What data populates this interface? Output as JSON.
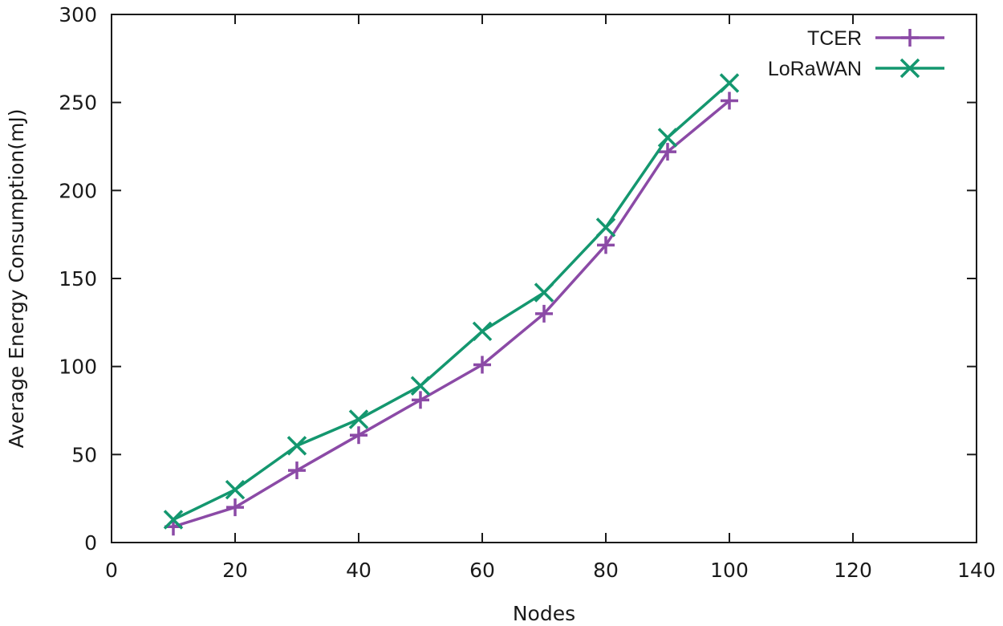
{
  "chart_data": {
    "type": "line",
    "xlabel": "Nodes",
    "ylabel": "Average Energy Consumption(mJ)",
    "xlim": [
      0,
      140
    ],
    "ylim": [
      0,
      300
    ],
    "xticks": [
      0,
      20,
      40,
      60,
      80,
      100,
      120,
      140
    ],
    "yticks": [
      0,
      50,
      100,
      150,
      200,
      250,
      300
    ],
    "grid": false,
    "legend_position": "top-right",
    "x": [
      10,
      20,
      30,
      40,
      50,
      60,
      70,
      80,
      90,
      100
    ],
    "series": [
      {
        "name": "TCER",
        "color": "#8b4aa6",
        "marker": "plus",
        "values": [
          9,
          20,
          41,
          61,
          81,
          101,
          130,
          169,
          222,
          251
        ]
      },
      {
        "name": "LoRaWAN",
        "color": "#14976f",
        "marker": "cross",
        "values": [
          13,
          30,
          55,
          70,
          89,
          120,
          142,
          179,
          230,
          261
        ]
      }
    ]
  }
}
